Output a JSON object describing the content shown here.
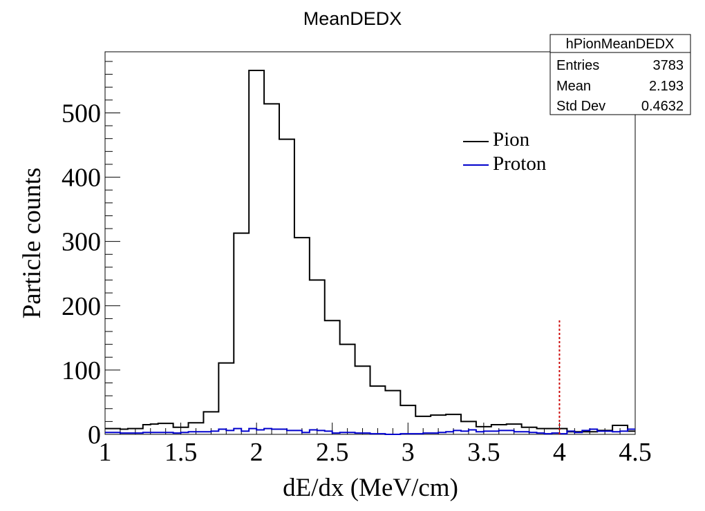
{
  "chart_data": {
    "type": "histogram",
    "title": "MeanDEDX",
    "xlabel": "dE/dx (MeV/cm)",
    "ylabel": "Particle counts",
    "xlim": [
      1,
      4.5
    ],
    "ylim": [
      0,
      595
    ],
    "bin_width": 0.1,
    "x_ticks": [
      1,
      1.5,
      2,
      2.5,
      3,
      3.5,
      4,
      4.5
    ],
    "y_ticks": [
      0,
      100,
      200,
      300,
      400,
      500
    ],
    "legend": [
      {
        "label": "Pion",
        "color": "#000000"
      },
      {
        "label": "Proton",
        "color": "#0000cc"
      }
    ],
    "legend_position": "upper-right",
    "stats_box": {
      "name": "hPionMeanDEDX",
      "rows": [
        {
          "label": "Entries",
          "value": "3783"
        },
        {
          "label": "Mean",
          "value": "2.193"
        },
        {
          "label": "Std Dev",
          "value": "0.4632"
        }
      ]
    },
    "series": [
      {
        "name": "Pion",
        "color": "#000000",
        "bin_edges": [
          1.0,
          1.05,
          1.1,
          1.15,
          1.2,
          1.25,
          1.3,
          1.35,
          1.4,
          1.45,
          1.5,
          1.55,
          1.6,
          1.65,
          1.7,
          1.75,
          1.8,
          1.85,
          1.9,
          1.95,
          2.0,
          2.05,
          2.1,
          2.15,
          2.2,
          2.25,
          2.3,
          2.35,
          2.4,
          2.45,
          2.5,
          2.55,
          2.6,
          2.65,
          2.7,
          2.75,
          2.8,
          2.85,
          2.9,
          2.95,
          3.0,
          3.05,
          3.1,
          3.15,
          3.2,
          3.25,
          3.3,
          3.35,
          3.4,
          3.45,
          3.5,
          3.55,
          3.6,
          3.65,
          3.7,
          3.75,
          3.8,
          3.85,
          3.9,
          3.95,
          4.0,
          4.05,
          4.1,
          4.15,
          4.2,
          4.25,
          4.3,
          4.35,
          4.4,
          4.45,
          4.5
        ],
        "counts": [
          9,
          9,
          8,
          9,
          9,
          15,
          16,
          17,
          17,
          11,
          11,
          18,
          18,
          35,
          35,
          111,
          111,
          313,
          313,
          566,
          566,
          514,
          514,
          459,
          459,
          306,
          306,
          240,
          240,
          177,
          177,
          140,
          140,
          106,
          106,
          75,
          75,
          68,
          68,
          45,
          45,
          28,
          28,
          30,
          30,
          31,
          31,
          20,
          20,
          12,
          12,
          15,
          15,
          16,
          16,
          11,
          11,
          9,
          9,
          9,
          9,
          4,
          4,
          4,
          4,
          6,
          6,
          14,
          14,
          5
        ]
      },
      {
        "name": "Proton",
        "color": "#0000cc",
        "bin_edges": [
          1.0,
          1.05,
          1.1,
          1.15,
          1.2,
          1.25,
          1.3,
          1.35,
          1.4,
          1.45,
          1.5,
          1.55,
          1.6,
          1.65,
          1.7,
          1.75,
          1.8,
          1.85,
          1.9,
          1.95,
          2.0,
          2.05,
          2.1,
          2.15,
          2.2,
          2.25,
          2.3,
          2.35,
          2.4,
          2.45,
          2.5,
          2.55,
          2.6,
          2.65,
          2.7,
          2.75,
          2.8,
          2.85,
          2.9,
          2.95,
          3.0,
          3.05,
          3.1,
          3.15,
          3.2,
          3.25,
          3.3,
          3.35,
          3.4,
          3.45,
          3.5,
          3.55,
          3.6,
          3.65,
          3.7,
          3.75,
          3.8,
          3.85,
          3.9,
          3.95,
          4.0,
          4.05,
          4.1,
          4.15,
          4.2,
          4.25,
          4.3,
          4.35,
          4.4,
          4.45,
          4.5
        ],
        "counts": [
          3,
          3,
          2,
          2,
          2,
          3,
          3,
          3,
          3,
          2,
          3,
          4,
          4,
          4,
          5,
          8,
          6,
          9,
          5,
          9,
          7,
          9,
          8,
          8,
          6,
          6,
          3,
          7,
          6,
          5,
          2,
          3,
          3,
          2,
          2,
          1,
          1,
          0,
          0,
          1,
          1,
          1,
          2,
          2,
          3,
          4,
          6,
          5,
          7,
          4,
          5,
          5,
          6,
          6,
          4,
          4,
          3,
          2,
          1,
          2,
          1,
          5,
          3,
          6,
          8,
          5,
          5,
          4,
          5,
          8
        ]
      }
    ],
    "reference_line": {
      "x": 4.0,
      "y_max": 180,
      "color": "#cc0000",
      "style": "dotted"
    }
  }
}
